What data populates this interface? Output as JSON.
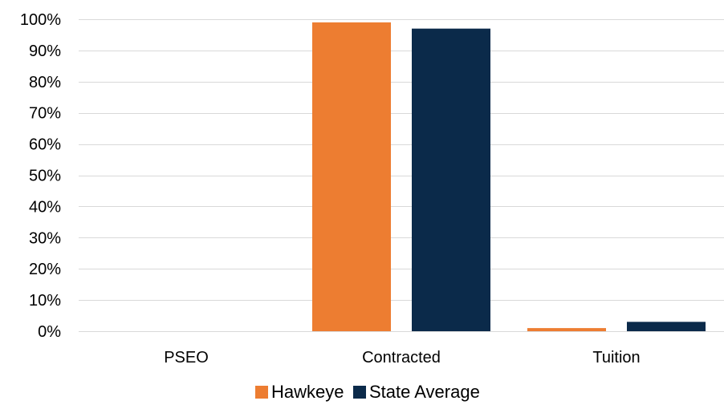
{
  "chart_data": {
    "type": "bar",
    "categories": [
      "PSEO",
      "Contracted",
      "Tuition"
    ],
    "series": [
      {
        "name": "Hawkeye",
        "color": "#ed7d31",
        "values": [
          0,
          99,
          1
        ]
      },
      {
        "name": "State Average",
        "color": "#0b2a4a",
        "values": [
          0,
          97,
          3
        ]
      }
    ],
    "ylim": [
      0,
      100
    ],
    "yticks": [
      0,
      10,
      20,
      30,
      40,
      50,
      60,
      70,
      80,
      90,
      100
    ],
    "ytick_labels": [
      "0%",
      "10%",
      "20%",
      "30%",
      "40%",
      "50%",
      "60%",
      "70%",
      "80%",
      "90%",
      "100%"
    ],
    "title": "",
    "xlabel": "",
    "ylabel": "",
    "grid": true,
    "legend": "bottom"
  }
}
